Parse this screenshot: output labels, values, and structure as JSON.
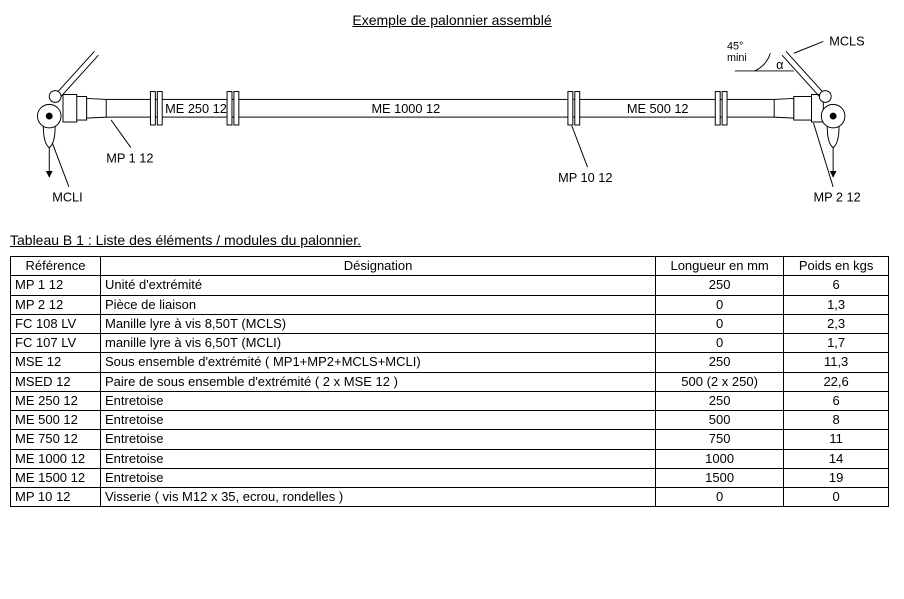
{
  "diagram": {
    "title": "Exemple de palonnier assemblé",
    "angle_note1": "45°",
    "angle_note2": "mini",
    "angle_symbol": "α",
    "labels": {
      "beam1": "ME 250 12",
      "beam2": "ME 1000 12",
      "beam3": "ME 500 12",
      "mcls": "MCLS",
      "mcli": "MCLI",
      "mp1": "MP 1 12",
      "mp2": "MP 2 12",
      "mp10": "MP 10 12"
    },
    "style": {
      "stroke": "#000000",
      "stroke_width": 1,
      "beam_height": 18,
      "flange_height": 34
    }
  },
  "table": {
    "title": "Tableau B 1 : Liste des éléments / modules du palonnier.",
    "headers": {
      "ref": "Référence",
      "des": "Désignation",
      "len": "Longueur en mm",
      "wt": "Poids en kgs"
    },
    "rows": [
      {
        "ref": "MP 1 12",
        "des": "Unité d'extrémité",
        "len": "250",
        "wt": "6"
      },
      {
        "ref": "MP 2 12",
        "des": "Pièce de liaison",
        "len": "0",
        "wt": "1,3"
      },
      {
        "ref": "FC 108 LV",
        "des": "Manille lyre à vis 8,50T (MCLS)",
        "len": "0",
        "wt": "2,3"
      },
      {
        "ref": "FC 107 LV",
        "des": "manille lyre à vis 6,50T (MCLI)",
        "len": "0",
        "wt": "1,7"
      },
      {
        "ref": "MSE 12",
        "des": "Sous ensemble d'extrémité ( MP1+MP2+MCLS+MCLI)",
        "len": "250",
        "wt": "11,3"
      },
      {
        "ref": "MSED 12",
        "des": "Paire de sous ensemble d'extrémité ( 2 x MSE 12 )",
        "len": "500 (2 x 250)",
        "wt": "22,6"
      },
      {
        "ref": "ME 250 12",
        "des": "Entretoise",
        "len": "250",
        "wt": "6"
      },
      {
        "ref": "ME 500 12",
        "des": "Entretoise",
        "len": "500",
        "wt": "8"
      },
      {
        "ref": "ME 750 12",
        "des": "Entretoise",
        "len": "750",
        "wt": "11"
      },
      {
        "ref": "ME 1000 12",
        "des": "Entretoise",
        "len": "1000",
        "wt": "14"
      },
      {
        "ref": "ME 1500 12",
        "des": "Entretoise",
        "len": "1500",
        "wt": "19"
      },
      {
        "ref": "MP 10 12",
        "des": "Visserie ( vis M12 x 35, ecrou, rondelles )",
        "len": "0",
        "wt": "0"
      }
    ]
  }
}
